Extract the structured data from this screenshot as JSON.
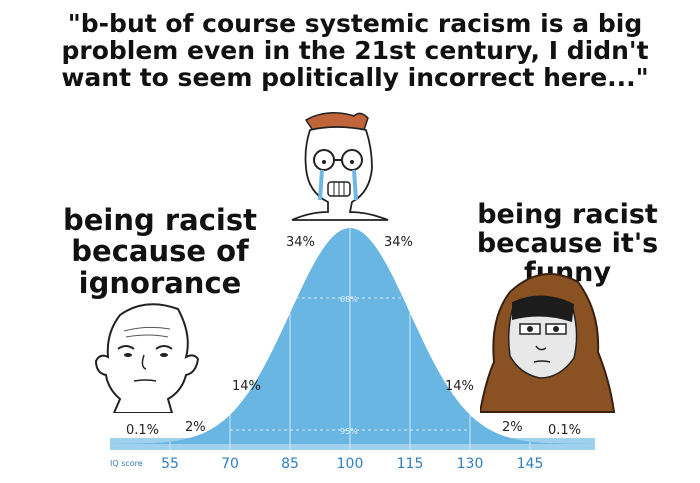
{
  "captions": {
    "top": "\"b-but of course systemic racism is a big problem even in the 21st century, I didn't want to seem politically incorrect here...\"",
    "left": "being racist because of ignorance",
    "right": "being racist because it's funny"
  },
  "distribution": {
    "axis_label": "IQ score",
    "ticks": [
      "55",
      "70",
      "85",
      "100",
      "115",
      "130",
      "145"
    ],
    "percent_labels": {
      "left_tail": "0.1%",
      "left_2": "2%",
      "left_14": "14%",
      "left_34": "34%",
      "center_68": "68%",
      "center_95": "95%",
      "right_34": "34%",
      "right_14": "14%",
      "right_2": "2%",
      "right_tail": "0.1%"
    }
  },
  "colors": {
    "curve": "#6ab6e3",
    "baseline": "#9fd0ee",
    "ticks": "#2f7fc0"
  },
  "characters": [
    "bald wojak (left)",
    "crying nerd wojak (middle)",
    "hooded doomer girl (right)"
  ]
}
